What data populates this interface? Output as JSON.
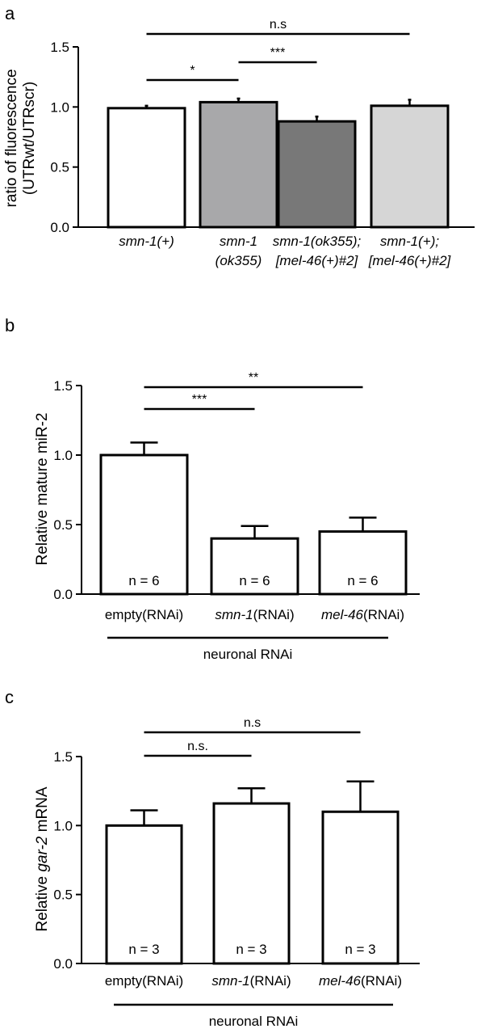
{
  "panels": [
    {
      "letter": "a",
      "chart_data": {
        "type": "bar",
        "ylabel": [
          "ratio of fluorescence",
          "(UTRwt/UTRscr)"
        ],
        "ylim": [
          0,
          1.5
        ],
        "yticks": [
          "0.0",
          "0.5",
          "1.0",
          "1.5"
        ],
        "categories": [
          [
            "smn-1(+)"
          ],
          [
            "smn-1",
            "(ok355)"
          ],
          [
            "smn-1(ok355);",
            "[mel-46(+)#2]"
          ],
          [
            "smn-1(+);",
            "[mel-46(+)#2]"
          ]
        ],
        "values": [
          0.99,
          1.04,
          0.88,
          1.01
        ],
        "errors": [
          0.02,
          0.03,
          0.04,
          0.05
        ],
        "colors": [
          "#ffffff",
          "#a8a8aa",
          "#787878",
          "#d6d6d6"
        ],
        "significance": [
          {
            "from": 0,
            "to": 1,
            "label": "*"
          },
          {
            "from": 1,
            "to": 2,
            "label": "***"
          },
          {
            "from": 0,
            "to": 3,
            "label": "n.s"
          }
        ]
      }
    },
    {
      "letter": "b",
      "chart_data": {
        "type": "bar",
        "ylabel": [
          "Relative  mature miR-2"
        ],
        "ylim": [
          0,
          1.5
        ],
        "yticks": [
          "0.0",
          "0.5",
          "1.0",
          "1.5"
        ],
        "categories": [
          [
            {
              "t": "empty(RNAi)",
              "i": false
            }
          ],
          [
            {
              "t": "smn-1",
              "i": true
            },
            {
              "t": "(RNAi)",
              "i": false
            }
          ],
          [
            {
              "t": "mel-46",
              "i": true
            },
            {
              "t": "(RNAi)",
              "i": false
            }
          ]
        ],
        "values": [
          1.0,
          0.4,
          0.45
        ],
        "errors": [
          0.09,
          0.09,
          0.1
        ],
        "n_labels": [
          "n = 6",
          "n = 6",
          "n = 6"
        ],
        "significance": [
          {
            "from": 0,
            "to": 1,
            "label": "***"
          },
          {
            "from": 0,
            "to": 2,
            "label": "**"
          }
        ],
        "footer": "neuronal RNAi"
      }
    },
    {
      "letter": "c",
      "chart_data": {
        "type": "bar",
        "ylabel": [
          {
            "t": "Relative ",
            "i": false
          },
          {
            "t": "gar-2",
            "i": true
          },
          {
            "t": " mRNA",
            "i": false
          }
        ],
        "ylim": [
          0,
          1.5
        ],
        "yticks": [
          "0.0",
          "0.5",
          "1.0",
          "1.5"
        ],
        "categories": [
          [
            {
              "t": "empty(RNAi)",
              "i": false
            }
          ],
          [
            {
              "t": "smn-1",
              "i": true
            },
            {
              "t": "(RNAi)",
              "i": false
            }
          ],
          [
            {
              "t": "mel-46",
              "i": true
            },
            {
              "t": "(RNAi)",
              "i": false
            }
          ]
        ],
        "values": [
          1.0,
          1.16,
          1.1
        ],
        "errors": [
          0.11,
          0.11,
          0.22
        ],
        "n_labels": [
          "n = 3",
          "n = 3",
          "n = 3"
        ],
        "significance": [
          {
            "from": 0,
            "to": 1,
            "label": "n.s."
          },
          {
            "from": 0,
            "to": 2,
            "label": "n.s"
          }
        ],
        "footer": "neuronal RNAi"
      }
    }
  ]
}
